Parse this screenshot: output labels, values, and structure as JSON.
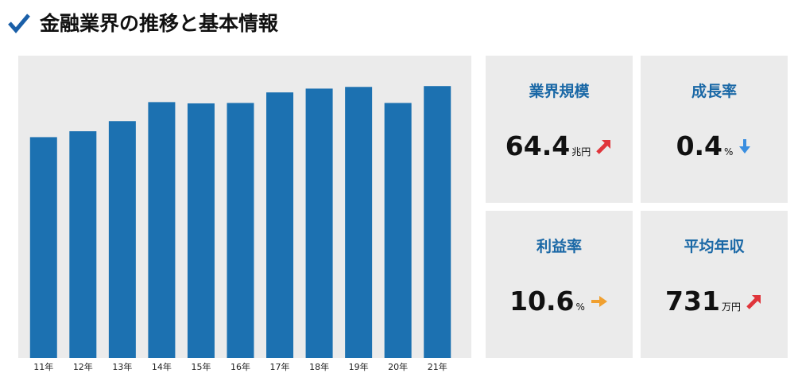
{
  "header": {
    "title": "金融業界の推移と基本情報"
  },
  "chart_data": {
    "type": "bar",
    "categories": [
      "11年",
      "12年",
      "13年",
      "14年",
      "15年",
      "16年",
      "17年",
      "18年",
      "19年",
      "20年",
      "21年"
    ],
    "values": [
      52.3,
      53.7,
      56.1,
      60.6,
      60.3,
      60.4,
      62.9,
      63.8,
      64.2,
      60.4,
      64.4
    ],
    "color": "#1c71b1",
    "ylim": [
      0,
      71.6
    ]
  },
  "stats": [
    {
      "label": "業界規模",
      "value": 64.4,
      "unit": "兆円"
    },
    {
      "label": "成長率",
      "value": 0.4,
      "unit": "%"
    },
    {
      "label": "利益率",
      "value": 10.6,
      "unit": "%"
    },
    {
      "label": "平均年収",
      "value": 731,
      "unit": "万円"
    }
  ]
}
